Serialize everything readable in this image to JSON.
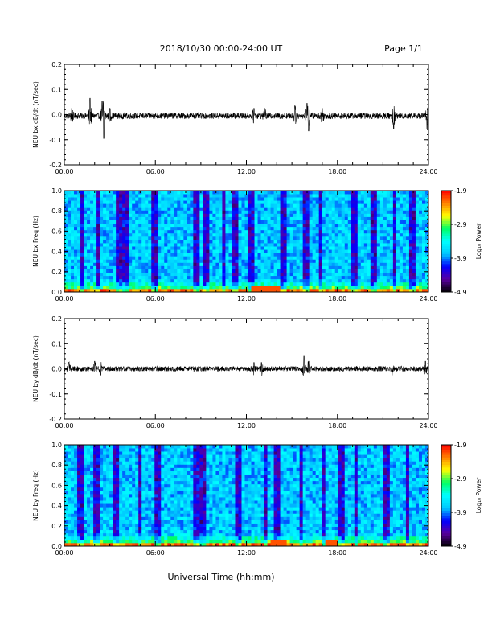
{
  "header": {
    "title": "2018/10/30  00:00-24:00 UT",
    "page": "Page 1/1"
  },
  "footer": {
    "xlabel": "Universal Time (hh:mm)"
  },
  "colorbar": {
    "label": "Log₁₀ Power",
    "ticks": [
      "-1.9",
      "-2.9",
      "-3.9",
      "-4.9"
    ],
    "range": [
      -4.9,
      -1.9
    ],
    "colors": [
      "#000000",
      "#5a00a0",
      "#0000ff",
      "#00c8ff",
      "#00ffff",
      "#00ff64",
      "#ffff00",
      "#ff8000",
      "#ff0000"
    ]
  },
  "chart_data": [
    {
      "type": "line",
      "ylabel": "NEU bx dB/dt (nT/sec)",
      "xlim": [
        0,
        24
      ],
      "ylim": [
        -0.2,
        0.2
      ],
      "x_ticks": [
        "00:00",
        "06:00",
        "12:00",
        "18:00",
        "24:00"
      ],
      "y_ticks": [
        "0.2",
        "0.1",
        "0.0",
        "-0.1",
        "-0.2"
      ],
      "baseline": -0.005,
      "noise_amplitude": 0.012,
      "bursts": [
        {
          "t": 0.5,
          "amp": 0.03
        },
        {
          "t": 1.7,
          "amp": 0.07
        },
        {
          "t": 2.5,
          "amp": 0.06
        },
        {
          "t": 2.6,
          "amp": -0.09
        },
        {
          "t": 3.0,
          "amp": 0.03
        },
        {
          "t": 12.5,
          "amp": 0.03
        },
        {
          "t": 13.2,
          "amp": 0.03
        },
        {
          "t": 15.2,
          "amp": 0.04
        },
        {
          "t": 16.0,
          "amp": 0.05
        },
        {
          "t": 16.1,
          "amp": -0.06
        },
        {
          "t": 17.0,
          "amp": 0.03
        },
        {
          "t": 21.7,
          "amp": -0.05
        },
        {
          "t": 23.9,
          "amp": -0.05
        }
      ]
    },
    {
      "type": "heatmap",
      "ylabel": "NEU bx Freq (Hz)",
      "xlim": [
        0,
        24
      ],
      "ylim": [
        0.0,
        1.0
      ],
      "x_ticks": [
        "00:00",
        "06:00",
        "12:00",
        "18:00",
        "24:00"
      ],
      "y_ticks": [
        "1.0",
        "0.8",
        "0.6",
        "0.4",
        "0.2",
        "0.0"
      ],
      "zlim": [
        -4.9,
        -1.9
      ],
      "dark_bands": [
        1.2,
        2.2,
        3.6,
        4.1,
        6.0,
        8.7,
        9.3,
        10.5,
        11.2,
        12.3,
        14.5,
        16.0,
        16.9,
        19.1,
        20.4,
        21.8,
        22.9
      ],
      "hot_spots": [
        {
          "t": 12.6,
          "f": 0.02
        },
        {
          "t": 13.0,
          "f": 0.02
        },
        {
          "t": 13.8,
          "f": 0.02
        }
      ]
    },
    {
      "type": "line",
      "ylabel": "NEU by dB/dt (nT/sec)",
      "xlim": [
        0,
        24
      ],
      "ylim": [
        -0.2,
        0.2
      ],
      "x_ticks": [
        "00:00",
        "06:00",
        "12:00",
        "18:00",
        "24:00"
      ],
      "y_ticks": [
        "0.2",
        "0.1",
        "0.0",
        "-0.1",
        "-0.2"
      ],
      "baseline": 0.0,
      "noise_amplitude": 0.01,
      "bursts": [
        {
          "t": 0.3,
          "amp": 0.025
        },
        {
          "t": 2.0,
          "amp": 0.03
        },
        {
          "t": 2.4,
          "amp": -0.025
        },
        {
          "t": 12.5,
          "amp": 0.025
        },
        {
          "t": 13.0,
          "amp": 0.025
        },
        {
          "t": 15.8,
          "amp": 0.05
        },
        {
          "t": 16.1,
          "amp": 0.03
        },
        {
          "t": 21.6,
          "amp": -0.025
        },
        {
          "t": 23.8,
          "amp": 0.03
        }
      ]
    },
    {
      "type": "heatmap",
      "ylabel": "NEU by Freq (Hz)",
      "xlim": [
        0,
        24
      ],
      "ylim": [
        0.0,
        1.0
      ],
      "x_ticks": [
        "00:00",
        "06:00",
        "12:00",
        "18:00",
        "24:00"
      ],
      "y_ticks": [
        "1.0",
        "0.8",
        "0.6",
        "0.4",
        "0.2",
        "0.0"
      ],
      "zlim": [
        -4.9,
        -1.9
      ],
      "dark_bands": [
        1.0,
        2.1,
        3.4,
        5.0,
        6.2,
        8.7,
        9.2,
        11.5,
        13.3,
        14.0,
        15.6,
        17.1,
        18.3,
        19.2,
        21.3,
        22.6
      ],
      "hot_spots": [
        {
          "t": 13.9,
          "f": 0.02
        },
        {
          "t": 14.4,
          "f": 0.02
        },
        {
          "t": 17.6,
          "f": 0.02
        }
      ]
    }
  ]
}
